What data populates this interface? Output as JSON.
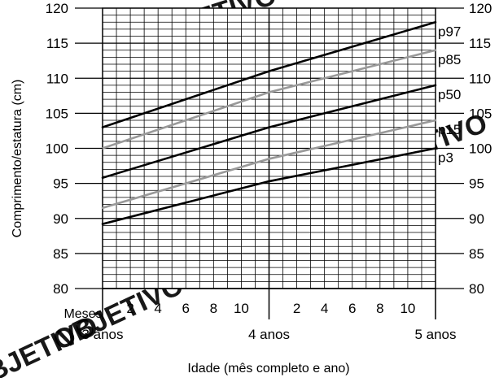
{
  "watermark": "OBJETIVO",
  "chart_data": {
    "type": "line",
    "ylabel": "Comprimento/estatura (cm)",
    "xlabel": "Idade (mês completo e ano)",
    "months_label": "Meses",
    "ylim": [
      80,
      120
    ],
    "y_ticks": [
      80,
      85,
      90,
      95,
      100,
      105,
      110,
      115,
      120
    ],
    "x_range_months": [
      36,
      60
    ],
    "month_ticks": [
      {
        "months": 38,
        "label": "2"
      },
      {
        "months": 40,
        "label": "4"
      },
      {
        "months": 42,
        "label": "6"
      },
      {
        "months": 44,
        "label": "8"
      },
      {
        "months": 46,
        "label": "10"
      },
      {
        "months": 50,
        "label": "2"
      },
      {
        "months": 52,
        "label": "4"
      },
      {
        "months": 54,
        "label": "6"
      },
      {
        "months": 56,
        "label": "8"
      },
      {
        "months": 58,
        "label": "10"
      }
    ],
    "year_ticks": [
      {
        "months": 36,
        "label": "3 anos"
      },
      {
        "months": 48,
        "label": "4 anos"
      },
      {
        "months": 60,
        "label": "5 anos"
      }
    ],
    "x": [
      36,
      48,
      60
    ],
    "grid": true,
    "series": [
      {
        "name": "p97",
        "values": [
          103.0,
          111.0,
          118.0
        ],
        "color": "#000000"
      },
      {
        "name": "p85",
        "values": [
          100.0,
          108.0,
          114.0
        ],
        "color": "#999999"
      },
      {
        "name": "p50",
        "values": [
          95.8,
          103.0,
          109.0
        ],
        "color": "#000000"
      },
      {
        "name": "p15",
        "values": [
          91.5,
          98.5,
          104.0
        ],
        "color": "#999999"
      },
      {
        "name": "p3",
        "values": [
          89.2,
          95.3,
          100.0
        ],
        "color": "#000000"
      }
    ]
  }
}
